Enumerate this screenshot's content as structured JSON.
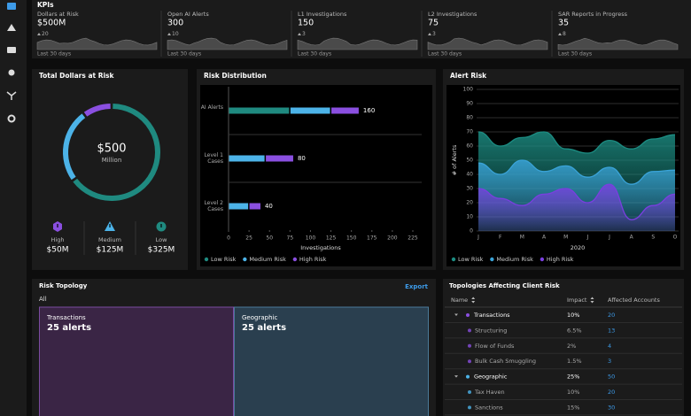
{
  "kpis": {
    "title": "KPIs",
    "items": [
      {
        "label": "Dollars at Risk",
        "value": "$500M",
        "delta": "20",
        "period": "Last 30 days"
      },
      {
        "label": "Open AI Alerts",
        "value": "300",
        "delta": "10",
        "period": "Last 30 days"
      },
      {
        "label": "L1 Investigations",
        "value": "150",
        "delta": "3",
        "period": "Last 30 days"
      },
      {
        "label": "L2 Investigations",
        "value": "75",
        "delta": "3",
        "period": "Last 30 days"
      },
      {
        "label": "SAR Reports in Progress",
        "value": "35",
        "delta": "8",
        "period": "Last 30 days"
      }
    ]
  },
  "chart_data": [
    {
      "type": "donut",
      "title": "Total Dollars at Risk",
      "center_value": "$500",
      "center_label": "Million",
      "categories": [
        "High",
        "Medium",
        "Low"
      ],
      "values": [
        50,
        125,
        325
      ],
      "value_labels": [
        "$50M",
        "$125M",
        "$325M"
      ],
      "colors": [
        "#8a4fe0",
        "#4cb3e8",
        "#1f8a80"
      ]
    },
    {
      "type": "hbar",
      "stacked": true,
      "title": "Risk Distribution",
      "categories": [
        "AI Alerts",
        "Level 1 Cases",
        "Level 2 Cases"
      ],
      "series": [
        {
          "name": "Low Risk",
          "color": "#1f8a80",
          "values": [
            75,
            0,
            0
          ]
        },
        {
          "name": "Medium Risk",
          "color": "#4cb3e8",
          "values": [
            50,
            45,
            25
          ]
        },
        {
          "name": "High Risk",
          "color": "#8a4fe0",
          "values": [
            35,
            35,
            15
          ]
        }
      ],
      "totals": [
        160,
        80,
        40
      ],
      "xlim": [
        0,
        225
      ],
      "xticks": [
        0,
        25,
        50,
        75,
        100,
        125,
        150,
        175,
        200,
        225
      ],
      "xlabel": "Investigations",
      "legend": "bottom"
    },
    {
      "type": "area",
      "title": "Alert Risk",
      "categories": [
        "J",
        "F",
        "M",
        "A",
        "M",
        "J",
        "J",
        "A",
        "S",
        "O"
      ],
      "series": [
        {
          "name": "Low Risk",
          "color": "#1c8c82",
          "values": [
            70,
            60,
            66,
            70,
            58,
            55,
            64,
            58,
            65,
            68
          ]
        },
        {
          "name": "Medium Risk",
          "color": "#3aa3d8",
          "values": [
            48,
            40,
            50,
            42,
            46,
            38,
            45,
            33,
            42,
            43
          ]
        },
        {
          "name": "High Risk",
          "color": "#7a3fe0",
          "values": [
            30,
            23,
            18,
            26,
            30,
            20,
            33,
            8,
            18,
            26
          ]
        }
      ],
      "ylim": [
        0,
        100
      ],
      "yticks": [
        0,
        10,
        20,
        30,
        40,
        50,
        60,
        70,
        80,
        90,
        100
      ],
      "ylabel": "# of Alerts",
      "xlabel": "2020",
      "grid": true,
      "legend": "bottom"
    },
    {
      "type": "treemap",
      "title": "Risk Topology",
      "action": "Export",
      "filter": "All",
      "categories": [
        "Transactions",
        "Geographic"
      ],
      "values": [
        25,
        25
      ],
      "value_labels": [
        "25 alerts",
        "25 alerts"
      ],
      "colors": [
        "#7b4ba0",
        "#4a7a99"
      ]
    }
  ],
  "table": {
    "title": "Topologies Affecting Client Risk",
    "columns": [
      "Name",
      "Impact",
      "Affected Accounts"
    ],
    "groups": [
      {
        "name": "Transactions",
        "impact": "10%",
        "accounts": "20",
        "color": "#8a4fe0",
        "children": [
          {
            "name": "Structuring",
            "impact": "6.5%",
            "accounts": "13"
          },
          {
            "name": "Flow of Funds",
            "impact": "2%",
            "accounts": "4"
          },
          {
            "name": "Bulk Cash Smuggling",
            "impact": "1.5%",
            "accounts": "3"
          }
        ]
      },
      {
        "name": "Geographic",
        "impact": "25%",
        "accounts": "50",
        "color": "#4cb3e8",
        "children": [
          {
            "name": "Tax Haven",
            "impact": "10%",
            "accounts": "20"
          },
          {
            "name": "Sanctions",
            "impact": "15%",
            "accounts": "30"
          }
        ]
      }
    ]
  }
}
